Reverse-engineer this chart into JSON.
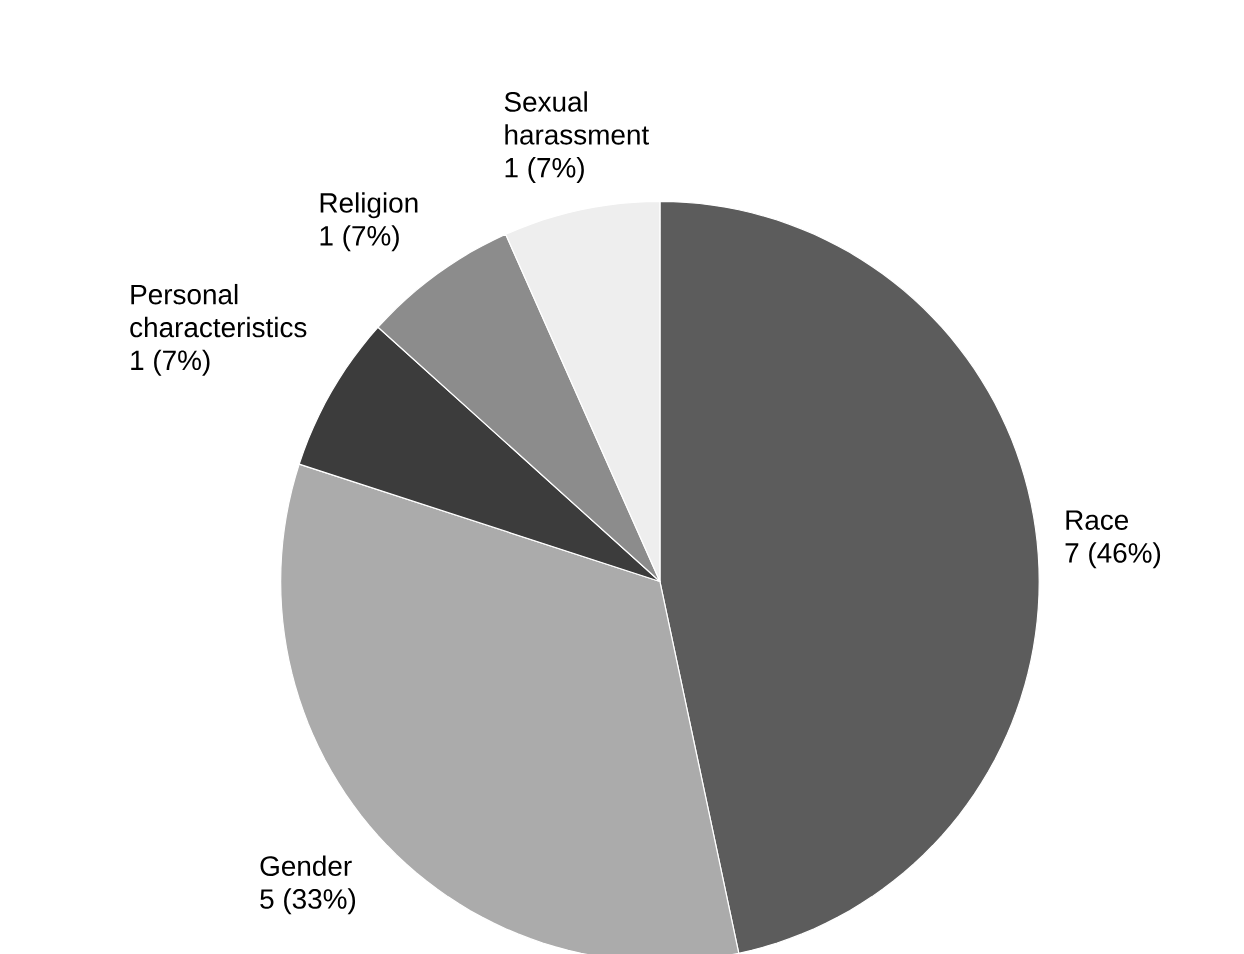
{
  "chart_data": {
    "type": "pie",
    "categories": [
      "Race",
      "Gender",
      "Personal characteristics",
      "Religion",
      "Sexual harassment"
    ],
    "values": [
      7,
      5,
      1,
      1,
      1
    ],
    "value_labels": [
      "7 (46%)",
      "5 (33%)",
      "1 (7%)",
      "1 (7%)",
      "1 (7%)"
    ],
    "colors": [
      "#5c5c5c",
      "#ababab",
      "#3c3c3c",
      "#8c8c8c",
      "#eeeeee"
    ],
    "legend": false
  }
}
